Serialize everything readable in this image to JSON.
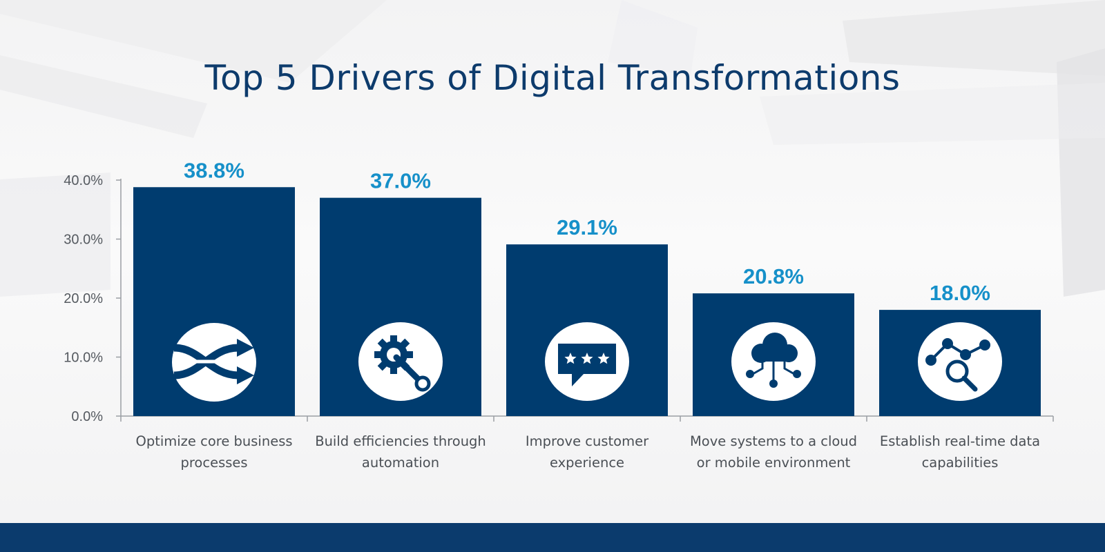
{
  "title": "Top 5 Drivers of Digital Transformations",
  "chart_data": {
    "type": "bar",
    "categories": [
      [
        "Optimize core business",
        "processes"
      ],
      [
        "Build efficiencies through",
        "automation"
      ],
      [
        "Improve customer",
        "experience"
      ],
      [
        "Move systems to a cloud",
        "or mobile environment"
      ],
      [
        "Establish real-time data",
        "capabilities"
      ]
    ],
    "values": [
      38.8,
      37.0,
      29.1,
      20.8,
      18.0
    ],
    "data_labels": [
      "38.8%",
      "37.0%",
      "29.1%",
      "20.8%",
      "18.0%"
    ],
    "yticks": [
      "0.0%",
      "10.0%",
      "20.0%",
      "30.0%",
      "40.0%"
    ],
    "ylim": [
      0,
      40
    ],
    "grid": false,
    "legend": "none",
    "icons": [
      "shuffle-arrows-icon",
      "gear-wrench-icon",
      "rating-stars-icon",
      "cloud-network-icon",
      "data-search-icon"
    ]
  },
  "colors": {
    "bar": "#003c6f",
    "data_label": "#1690c9",
    "title": "#0d3b6c",
    "footer": "#0b3b6d",
    "icon_circle": "#ffffff"
  }
}
